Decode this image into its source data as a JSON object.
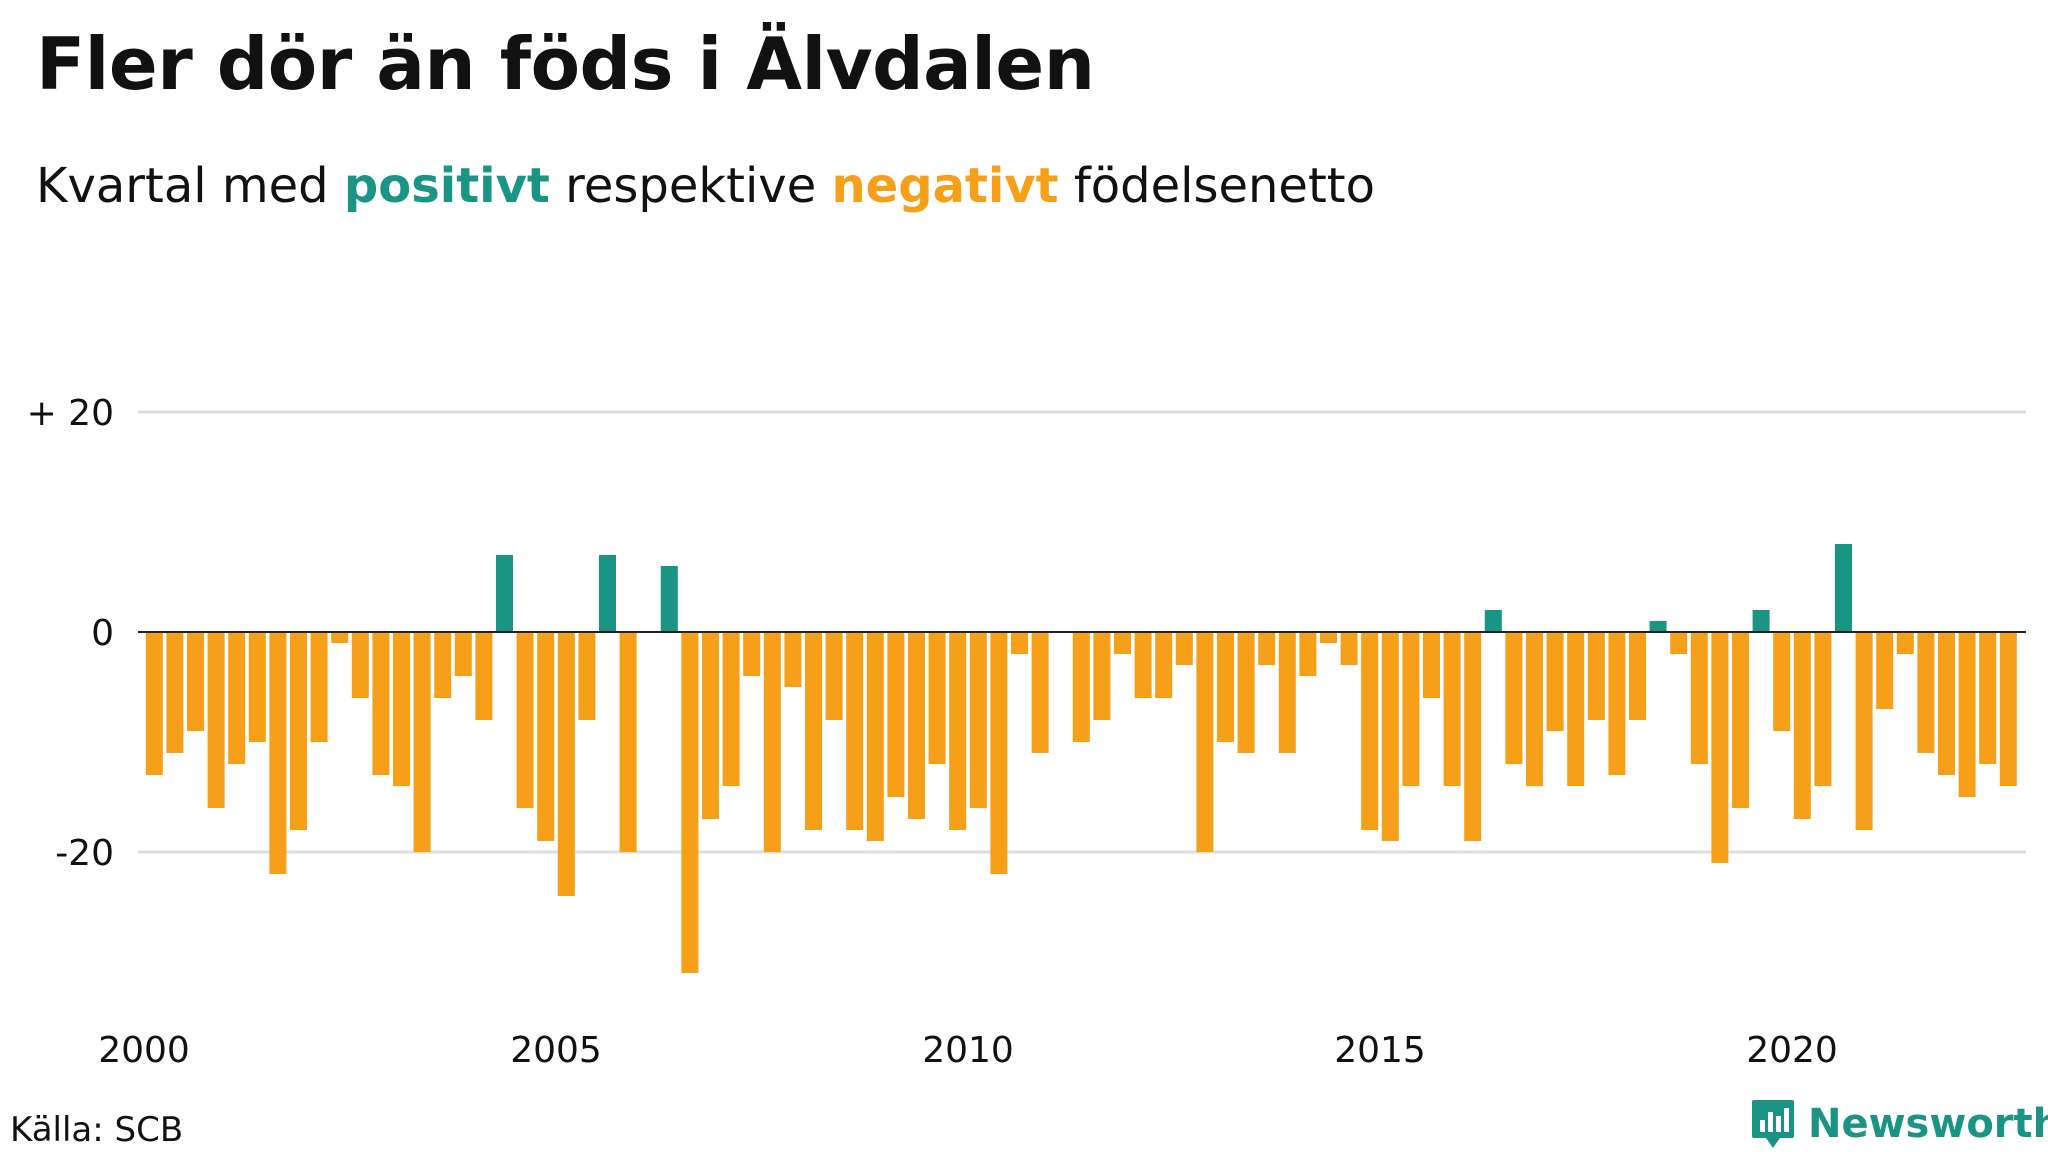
{
  "header": {
    "title": "Fler dör än föds i Älvdalen",
    "subtitle_before": "Kvartal med ",
    "subtitle_pos": "positivt",
    "subtitle_mid": " respektive ",
    "subtitle_neg": "negativt",
    "subtitle_after": " födelsenetto"
  },
  "footer": {
    "source": "Källa: SCB",
    "brand": "Newsworthy"
  },
  "colors": {
    "positive": "#1a9585",
    "negative": "#f6a01a",
    "grid": "#dddddd",
    "zero_line": "#222222"
  },
  "chart_data": {
    "type": "bar",
    "x_start": "2000 Q1",
    "yticks": [
      {
        "value": 20,
        "label": "+ 20"
      },
      {
        "value": 0,
        "label": "0"
      },
      {
        "value": -20,
        "label": "-20"
      }
    ],
    "xticks": [
      {
        "year": 2000,
        "label": "2000"
      },
      {
        "year": 2005,
        "label": "2005"
      },
      {
        "year": 2010,
        "label": "2010"
      },
      {
        "year": 2015,
        "label": "2015"
      },
      {
        "year": 2020,
        "label": "2020"
      }
    ],
    "ylim": [
      -32,
      20
    ],
    "values": [
      -13,
      -11,
      -9,
      -16,
      -12,
      -10,
      -22,
      -18,
      -10,
      -1,
      -6,
      -13,
      -14,
      -20,
      -6,
      -4,
      -8,
      7,
      -16,
      -19,
      -24,
      -8,
      7,
      -20,
      0,
      6,
      -31,
      -17,
      -14,
      -4,
      -20,
      -5,
      -18,
      -8,
      -18,
      -19,
      -15,
      -17,
      -12,
      -18,
      -16,
      -22,
      -2,
      -11,
      0,
      -10,
      -8,
      -2,
      -6,
      -6,
      -3,
      -20,
      -10,
      -11,
      -3,
      -11,
      -4,
      -1,
      -3,
      -18,
      -19,
      -14,
      -6,
      -14,
      -19,
      2,
      -12,
      -14,
      -9,
      -14,
      -8,
      -13,
      -8,
      1,
      -2,
      -12,
      -21,
      -16,
      2,
      -9,
      -17,
      -14,
      8,
      -18,
      -7,
      -2,
      -11,
      -13,
      -15,
      -12,
      -14
    ]
  }
}
